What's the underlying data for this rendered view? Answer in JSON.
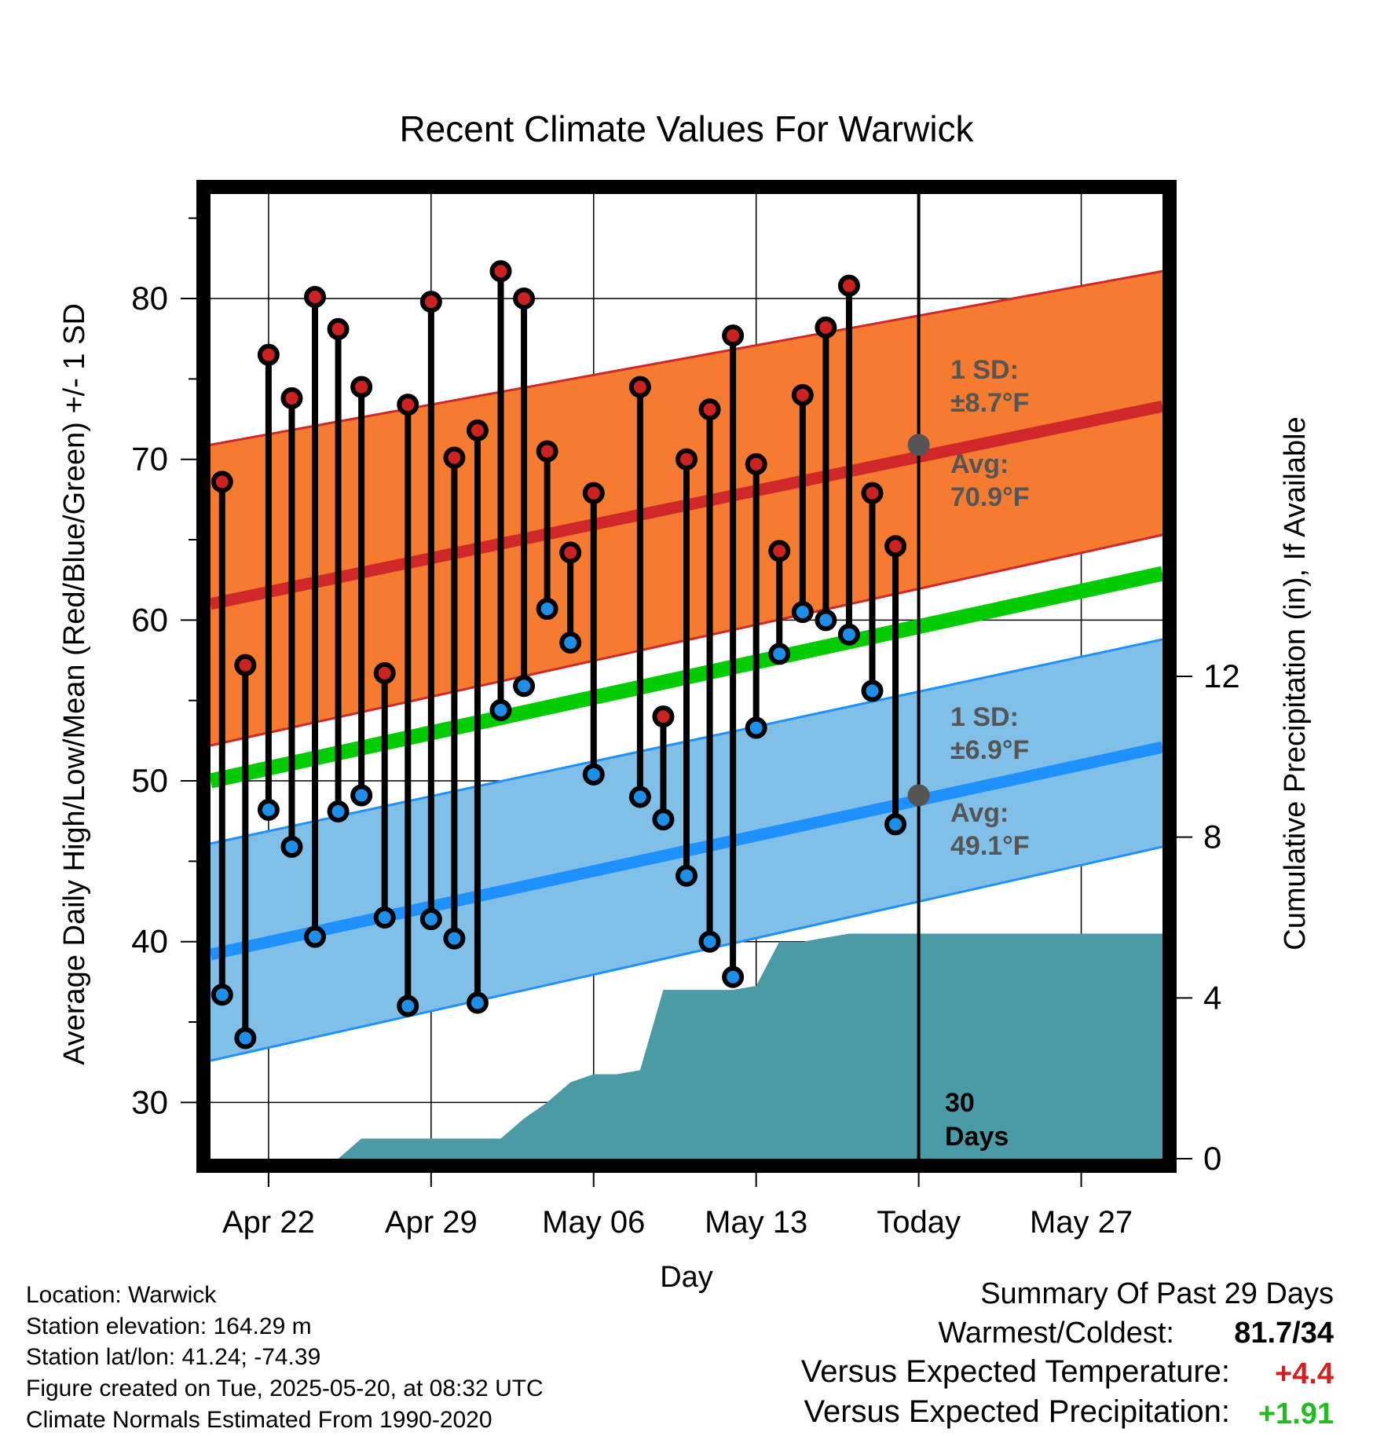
{
  "chart_data": {
    "type": "line",
    "title": "Recent Climate Values For Warwick",
    "xlabel": "Day",
    "ylabel_left": "Average Daily High/Low/Mean (Red/Blue/Green) +/- 1 SD",
    "ylabel_right": "Cumulative Precipitation (in), If Available",
    "ylim_left": [
      26.5,
      86.5
    ],
    "ylim_right": [
      0,
      24
    ],
    "yticks_left": [
      "30",
      "40",
      "50",
      "60",
      "70",
      "80"
    ],
    "yticks_right": [
      "0",
      "4",
      "8",
      "12"
    ],
    "xticks": [
      "Apr 22",
      "Apr 29",
      "May 06",
      "May 13",
      "Today",
      "May 27"
    ],
    "grid": true,
    "days": 41,
    "observed_days": [
      {
        "day": 1,
        "high": 68.6,
        "low": 36.7
      },
      {
        "day": 2,
        "high": 57.2,
        "low": 34.0
      },
      {
        "day": 3,
        "high": 76.5,
        "low": 48.2
      },
      {
        "day": 4,
        "high": 73.8,
        "low": 45.9
      },
      {
        "day": 5,
        "high": 80.1,
        "low": 40.3
      },
      {
        "day": 6,
        "high": 78.1,
        "low": 48.1
      },
      {
        "day": 7,
        "high": 74.5,
        "low": 49.1
      },
      {
        "day": 8,
        "high": 56.7,
        "low": 41.5
      },
      {
        "day": 9,
        "high": 73.4,
        "low": 36.0
      },
      {
        "day": 10,
        "high": 79.8,
        "low": 41.4
      },
      {
        "day": 11,
        "high": 70.1,
        "low": 40.2
      },
      {
        "day": 12,
        "high": 71.8,
        "low": 36.2
      },
      {
        "day": 13,
        "high": 81.7,
        "low": 54.4
      },
      {
        "day": 14,
        "high": 80.0,
        "low": 55.9
      },
      {
        "day": 15,
        "high": 70.5,
        "low": 60.7
      },
      {
        "day": 16,
        "high": 64.2,
        "low": 58.6
      },
      {
        "day": 17,
        "high": 67.9,
        "low": 50.4
      },
      {
        "day": 19,
        "high": 74.5,
        "low": 49.0
      },
      {
        "day": 20,
        "high": 54.0,
        "low": 47.6
      },
      {
        "day": 21,
        "high": 70.0,
        "low": 44.1
      },
      {
        "day": 22,
        "high": 73.1,
        "low": 40.0
      },
      {
        "day": 23,
        "high": 77.7,
        "low": 37.8
      },
      {
        "day": 24,
        "high": 69.7,
        "low": 53.3
      },
      {
        "day": 25,
        "high": 64.3,
        "low": 57.9
      },
      {
        "day": 26,
        "high": 74.0,
        "low": 60.5
      },
      {
        "day": 27,
        "high": 78.2,
        "low": 60.0
      },
      {
        "day": 28,
        "high": 80.8,
        "low": 59.1
      },
      {
        "day": 29,
        "high": 67.9,
        "low": 55.6
      },
      {
        "day": 30,
        "high": 64.6,
        "low": 47.3
      }
    ],
    "normal_high": {
      "x": [
        1,
        41
      ],
      "avg": [
        61.0,
        73.3
      ],
      "sd_upper": [
        70.9,
        81.7
      ],
      "sd_lower": [
        52.2,
        65.3
      ]
    },
    "normal_low": {
      "x": [
        1,
        41
      ],
      "avg": [
        39.2,
        52.1
      ],
      "sd_upper": [
        46.1,
        58.8
      ],
      "sd_lower": [
        32.6,
        45.9
      ]
    },
    "normal_mean": {
      "x": [
        1,
        41
      ],
      "values": [
        50.0,
        62.9
      ]
    },
    "precipitation": {
      "x": [
        1,
        6,
        7,
        8,
        9,
        10,
        11,
        12,
        13,
        14,
        15,
        16,
        17,
        18,
        19,
        20,
        21,
        22,
        23,
        24,
        25,
        26,
        27,
        28,
        29,
        41
      ],
      "values": [
        0,
        0,
        0.5,
        0.5,
        0.5,
        0.5,
        0.5,
        0.5,
        0.5,
        1.0,
        1.4,
        1.9,
        2.1,
        2.1,
        2.2,
        4.2,
        4.2,
        4.2,
        4.2,
        4.3,
        5.4,
        5.4,
        5.5,
        5.6,
        5.6,
        5.6
      ]
    },
    "today_marker": {
      "high_sd_label": "1 SD:",
      "high_sd_value": "±8.7°F",
      "high_avg_label": "Avg:",
      "high_avg_value": "70.9°F",
      "low_sd_label": "1 SD:",
      "low_sd_value": "±6.9°F",
      "low_avg_label": "Avg:",
      "low_avg_value": "49.1°F",
      "window_number": "30",
      "window_unit": "Days"
    },
    "colors": {
      "high_band": "#f47b2f",
      "high_avg": "#d02828",
      "low_band": "#80c0e8",
      "low_avg": "#1e90ff",
      "mean": "#00cc00",
      "precip": "#4a9ba5",
      "high_dot": "#cc2222",
      "low_dot": "#1e8fe8"
    }
  },
  "footer": {
    "location": "Location: Warwick",
    "elevation": "Station elevation: 164.29 m",
    "latlon": "Station lat/lon: 41.24; -74.39",
    "created": "Figure created on Tue, 2025-05-20, at 08:32 UTC",
    "normals": "Climate Normals Estimated From 1990-2020"
  },
  "summary": {
    "title": "Summary Of Past 29 Days",
    "warmest_label": "Warmest/Coldest:",
    "warmest_value": "81.7/34",
    "temp_label": "Versus Expected Temperature:",
    "temp_value": "+4.4",
    "precip_label": "Versus Expected Precipitation:",
    "precip_value": "+1.91",
    "temp_color": "#d02020",
    "precip_color": "#22bb22"
  }
}
